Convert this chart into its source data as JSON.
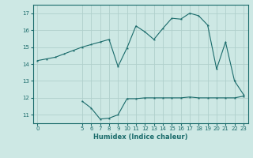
{
  "xlabel": "Humidex (Indice chaleur)",
  "ylabel": "",
  "bg_color": "#cde8e4",
  "line_color": "#1a6b6b",
  "grid_color": "#b0d0cc",
  "ylim": [
    10.5,
    17.5
  ],
  "xlim": [
    -0.5,
    23.5
  ],
  "yticks": [
    11,
    12,
    13,
    14,
    15,
    16,
    17
  ],
  "xticks": [
    0,
    5,
    6,
    7,
    8,
    9,
    10,
    11,
    12,
    13,
    14,
    15,
    16,
    17,
    18,
    19,
    20,
    21,
    22,
    23
  ],
  "line1_x": [
    0,
    1,
    2,
    3,
    4,
    5,
    6,
    7,
    8,
    9,
    10,
    11,
    12,
    13,
    14,
    15,
    16,
    17,
    18,
    19,
    20,
    21,
    22,
    23
  ],
  "line1_y": [
    14.2,
    14.3,
    14.4,
    14.6,
    14.8,
    15.0,
    15.15,
    15.3,
    15.45,
    13.85,
    14.95,
    16.25,
    15.9,
    15.45,
    16.1,
    16.7,
    16.65,
    17.0,
    16.85,
    16.3,
    13.7,
    15.3,
    13.0,
    12.2
  ],
  "line2_x": [
    5,
    6,
    7,
    8,
    9,
    10,
    11,
    12,
    13,
    14,
    15,
    16,
    17,
    18,
    19,
    20,
    21,
    22,
    23
  ],
  "line2_y": [
    11.8,
    11.4,
    10.75,
    10.8,
    11.0,
    11.95,
    11.95,
    12.0,
    12.0,
    12.0,
    12.0,
    12.0,
    12.05,
    12.0,
    12.0,
    12.0,
    12.0,
    12.0,
    12.1
  ]
}
